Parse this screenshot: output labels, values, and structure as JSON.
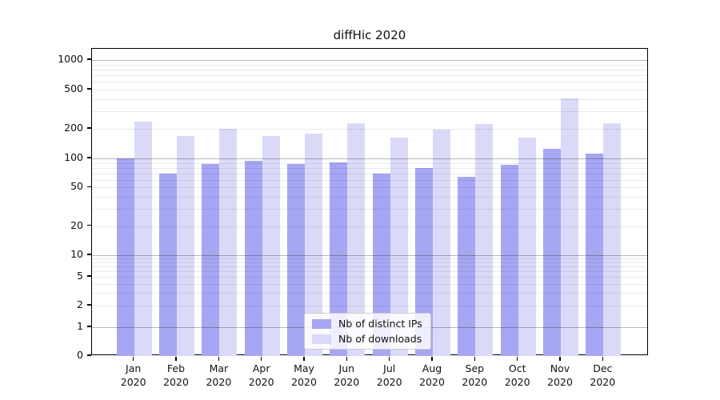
{
  "chart_data": {
    "type": "bar",
    "title": "diffHic 2020",
    "categories": [
      "Jan",
      "Feb",
      "Mar",
      "Apr",
      "May",
      "Jun",
      "Jul",
      "Aug",
      "Sep",
      "Oct",
      "Nov",
      "Dec"
    ],
    "year": "2020",
    "series": [
      {
        "name": "Nb of distinct IPs",
        "color": "#a6a6f2",
        "values": [
          100,
          70,
          87,
          94,
          88,
          91,
          70,
          79,
          65,
          86,
          125,
          113
        ]
      },
      {
        "name": "Nb of downloads",
        "color": "#dadaf8",
        "values": [
          235,
          168,
          200,
          170,
          180,
          230,
          164,
          195,
          225,
          162,
          410,
          230
        ]
      }
    ],
    "ylabel": "",
    "xlabel": "",
    "y_scale": "log-with-zero-floor",
    "y_ticks": [
      1000,
      500,
      200,
      100,
      50,
      20,
      10,
      5,
      2,
      1,
      0
    ],
    "ylim": [
      0,
      1300
    ],
    "grid": "horizontal, log major and minor",
    "legend_position": "inside bottom-center",
    "colors": {
      "grid_major": "rgba(0,0,0,0.28)",
      "grid_minor": "rgba(0,0,0,0.085)",
      "axis": "#000000",
      "text": "#111111"
    }
  }
}
